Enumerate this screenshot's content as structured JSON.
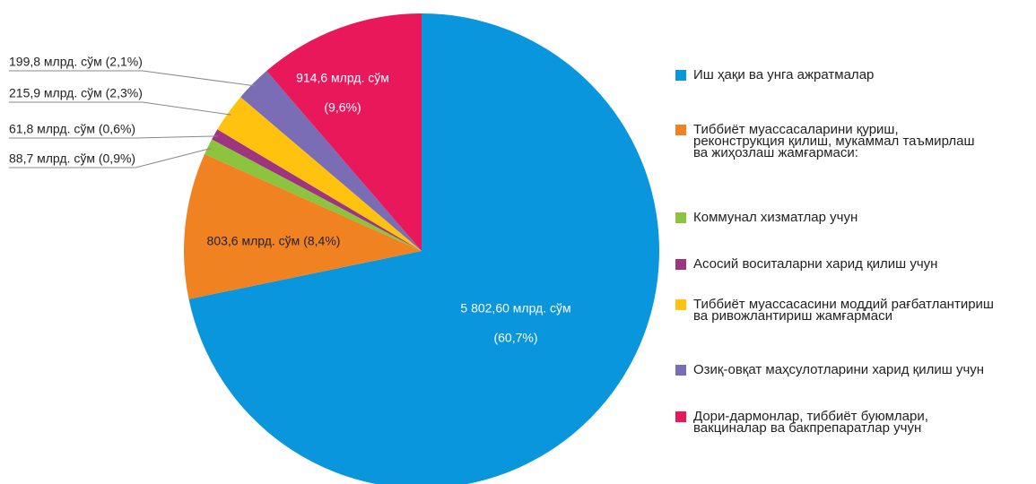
{
  "chart_data": {
    "type": "pie",
    "categories": [
      [
        "Иш ҳақи ва унга ажратмалар"
      ],
      [
        "Тиббиёт муассасаларини қуриш,",
        "реконструкция қилиш, мукаммал таъмирлаш",
        "ва жиҳозлаш жамғармаси:"
      ],
      [
        "Коммунал хизматлар учун"
      ],
      [
        "Асосий воситаларни харид қилиш учун"
      ],
      [
        "Тиббиёт муассасасини моддий рағбатлантириш",
        "ва ривожлантириш жамғармаси"
      ],
      [
        "Озиқ-овқат маҳсулотларини харид қилиш учун"
      ],
      [
        "Дори-дармонлар, тиббиёт буюмлари,",
        "вакциналар ва бакпрепаратлар учун"
      ]
    ],
    "values": [
      5802.6,
      803.6,
      88.7,
      61.8,
      215.9,
      199.8,
      914.6
    ],
    "value_labels": [
      [
        "5 802,60 млрд. сўм",
        "(60,7%)"
      ],
      [
        "803,6 млрд. сўм (8,4%)"
      ],
      [
        "88,7 млрд. сўм (0,9%)"
      ],
      [
        "61,8 млрд. сўм (0,6%)"
      ],
      [
        "215,9 млрд. сўм (2,3%)"
      ],
      [
        "199,8 млрд. сўм (2,1%)"
      ],
      [
        "914,6 млрд. сўм",
        "(9,6%)"
      ]
    ],
    "colors": [
      "#0a96dc",
      "#f08222",
      "#8cc43f",
      "#a0357f",
      "#ffc20e",
      "#7a6db5",
      "#e8185a"
    ]
  }
}
